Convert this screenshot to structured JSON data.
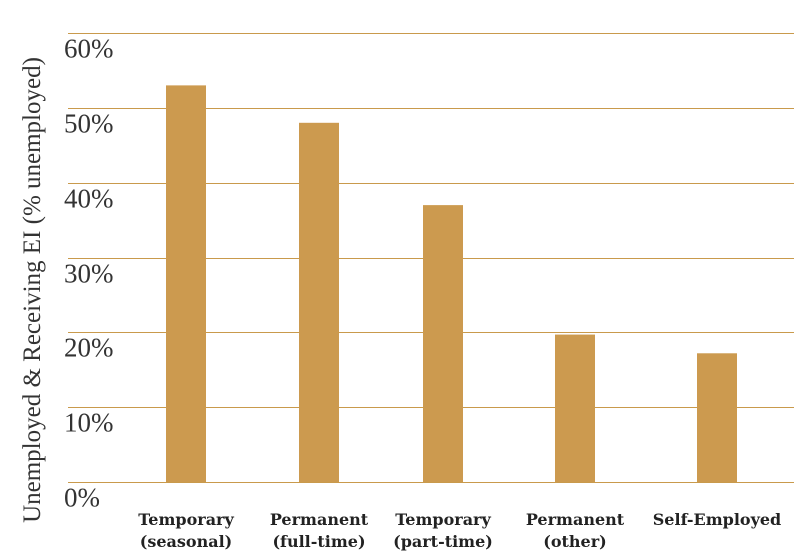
{
  "chart_data": {
    "type": "bar",
    "categories": [
      [
        "Temporary",
        "(seasonal)"
      ],
      [
        "Permanent",
        "(full-time)"
      ],
      [
        "Temporary",
        "(part-time)"
      ],
      [
        "Permanent",
        "(other)"
      ],
      [
        "Self-Employed"
      ]
    ],
    "values": [
      53,
      48,
      37,
      19.7,
      17.2
    ],
    "ylabel": "Unemployed & Receiving EI (% unemployed)",
    "xlabel": "",
    "ylim": [
      0,
      60
    ],
    "yticks": [
      0,
      10,
      20,
      30,
      40,
      50,
      60
    ],
    "ytick_labels": [
      "0%",
      "10%",
      "20%",
      "30%",
      "40%",
      "50%",
      "60%"
    ],
    "grid": true,
    "legend": "none",
    "bar_color": "#cc9a4f",
    "grid_color": "#c99a4c"
  }
}
